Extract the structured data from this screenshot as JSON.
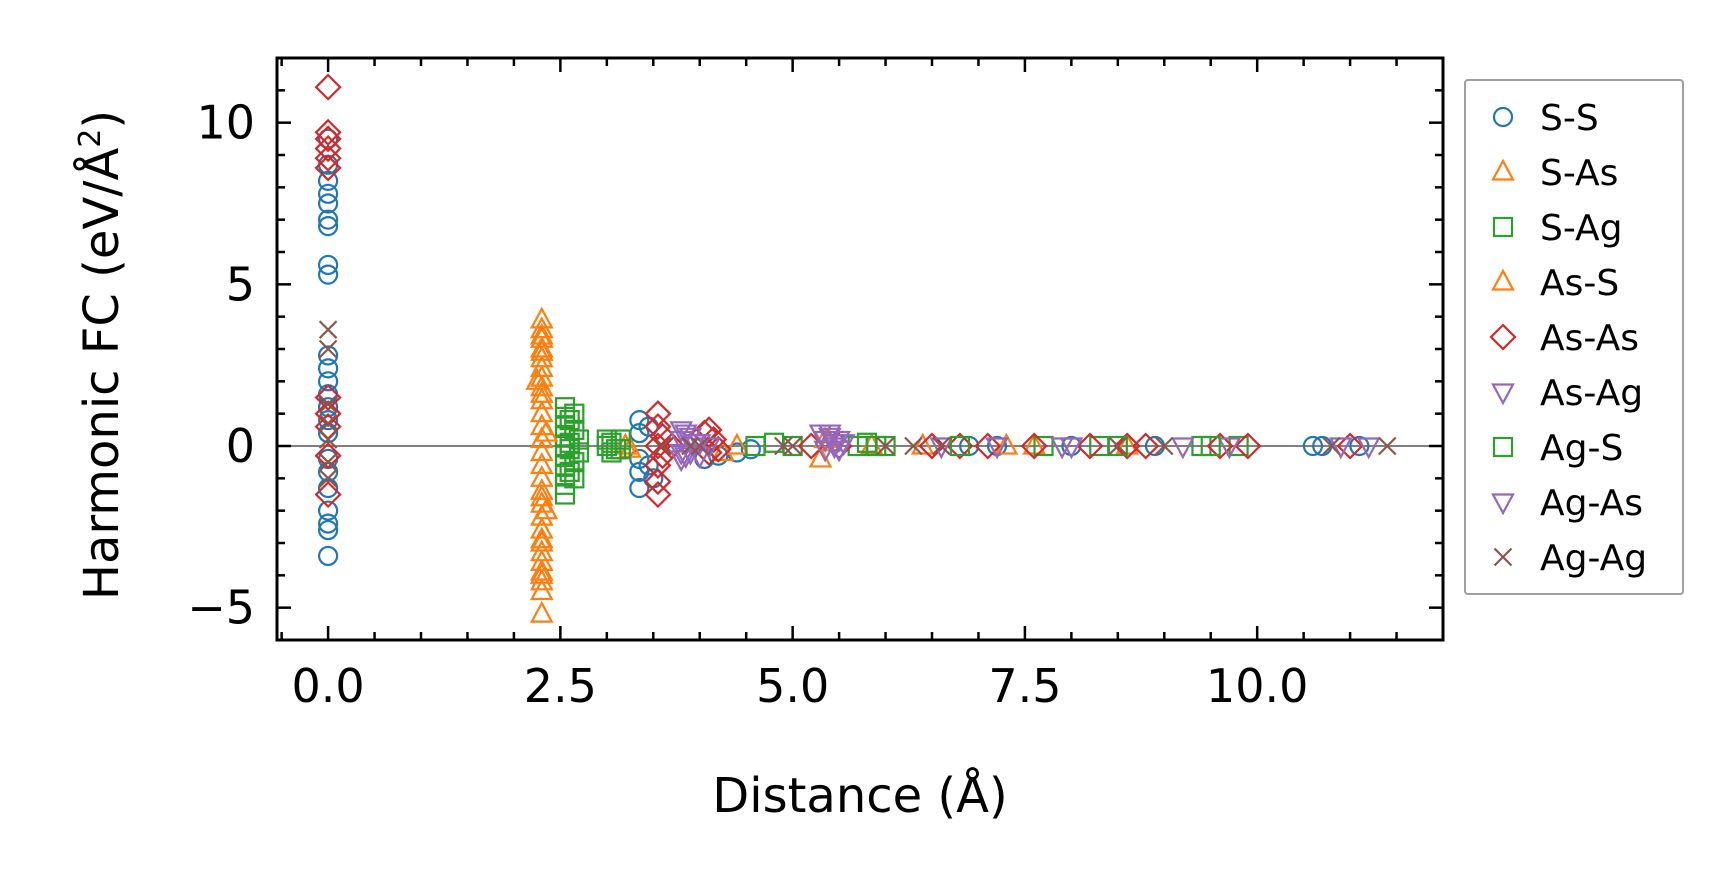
{
  "chart_data": {
    "type": "scatter",
    "title": "",
    "xlabel": "Distance (Å)",
    "ylabel_main": "Harmonic FC (eV/Å",
    "ylabel_sup": "2",
    "ylabel_tail": ")",
    "xlim": [
      -0.55,
      12.0
    ],
    "ylim": [
      -6.0,
      12.0
    ],
    "xticks": [
      0.0,
      2.5,
      5.0,
      7.5,
      10.0
    ],
    "xtick_labels": [
      "0.0",
      "2.5",
      "5.0",
      "7.5",
      "10.0"
    ],
    "yticks": [
      -5,
      0,
      5,
      10
    ],
    "ytick_labels": [
      "−5",
      "0",
      "5",
      "10"
    ],
    "zero_line": 0,
    "legend_position": "outside-right",
    "series": [
      {
        "name": "S-S",
        "marker": "circle",
        "color": "#1f77b4",
        "points": [
          [
            0,
            9.5
          ],
          [
            0,
            8.7
          ],
          [
            0,
            8.2
          ],
          [
            0,
            7.8
          ],
          [
            0,
            7.5
          ],
          [
            0,
            7.0
          ],
          [
            0,
            6.8
          ],
          [
            0,
            5.6
          ],
          [
            0,
            5.3
          ],
          [
            0,
            2.8
          ],
          [
            0,
            2.4
          ],
          [
            0,
            2.0
          ],
          [
            0,
            1.6
          ],
          [
            0,
            1.2
          ],
          [
            0,
            0.8
          ],
          [
            0,
            0.4
          ],
          [
            0,
            -0.4
          ],
          [
            0,
            -0.8
          ],
          [
            0,
            -1.3
          ],
          [
            0,
            -2.0
          ],
          [
            0,
            -2.4
          ],
          [
            0,
            -2.6
          ],
          [
            0,
            -3.4
          ],
          [
            3.35,
            0.8
          ],
          [
            3.35,
            0.4
          ],
          [
            3.35,
            -0.4
          ],
          [
            3.35,
            -0.8
          ],
          [
            3.35,
            -1.3
          ],
          [
            3.45,
            0.6
          ],
          [
            3.45,
            -0.6
          ],
          [
            3.5,
            -1.0
          ],
          [
            4.05,
            -0.4
          ],
          [
            4.2,
            -0.3
          ],
          [
            4.4,
            -0.2
          ],
          [
            4.55,
            -0.1
          ],
          [
            6.9,
            0
          ],
          [
            7.2,
            0
          ],
          [
            8.0,
            0
          ],
          [
            8.9,
            0
          ],
          [
            10.6,
            0
          ],
          [
            10.7,
            0
          ],
          [
            11.1,
            0
          ]
        ]
      },
      {
        "name": "S-As",
        "marker": "triangle-up",
        "color": "#ff7f0e",
        "points": [
          [
            2.3,
            3.9
          ],
          [
            2.3,
            3.6
          ],
          [
            2.3,
            3.3
          ],
          [
            2.3,
            3.0
          ],
          [
            2.3,
            2.7
          ],
          [
            2.3,
            2.4
          ],
          [
            2.3,
            2.1
          ],
          [
            2.3,
            1.8
          ],
          [
            2.3,
            1.4
          ],
          [
            2.3,
            1.0
          ],
          [
            2.3,
            0.6
          ],
          [
            2.3,
            0.2
          ],
          [
            2.3,
            -0.2
          ],
          [
            2.3,
            -0.6
          ],
          [
            2.3,
            -1.0
          ],
          [
            2.3,
            -1.4
          ],
          [
            2.3,
            -1.8
          ],
          [
            2.3,
            -2.2
          ],
          [
            2.3,
            -2.6
          ],
          [
            2.3,
            -3.0
          ],
          [
            2.3,
            -3.3
          ],
          [
            2.3,
            -3.6
          ],
          [
            2.3,
            -3.9
          ],
          [
            2.3,
            -4.2
          ],
          [
            2.3,
            -4.5
          ],
          [
            2.3,
            -5.2
          ],
          [
            2.25,
            2.0
          ],
          [
            2.35,
            -2.0
          ],
          [
            3.2,
            0
          ],
          [
            3.25,
            -0.1
          ],
          [
            4.25,
            -0.2
          ],
          [
            4.4,
            0
          ],
          [
            5.3,
            -0.4
          ],
          [
            5.35,
            0.2
          ],
          [
            5.85,
            0
          ],
          [
            7.3,
            0
          ],
          [
            7.6,
            0
          ]
        ]
      },
      {
        "name": "S-Ag",
        "marker": "square",
        "color": "#2ca02c",
        "points": [
          [
            2.55,
            1.2
          ],
          [
            2.55,
            0.9
          ],
          [
            2.55,
            0.6
          ],
          [
            2.55,
            0.3
          ],
          [
            2.55,
            0
          ],
          [
            2.55,
            -0.3
          ],
          [
            2.55,
            -0.6
          ],
          [
            2.55,
            -0.9
          ],
          [
            2.55,
            -1.2
          ],
          [
            2.55,
            -1.5
          ],
          [
            2.65,
            1.0
          ],
          [
            2.65,
            0.5
          ],
          [
            2.65,
            -0.5
          ],
          [
            2.65,
            -1.0
          ],
          [
            2.7,
            0.2
          ],
          [
            2.7,
            -0.2
          ],
          [
            3.0,
            0.2
          ],
          [
            3.0,
            0
          ],
          [
            3.05,
            -0.2
          ],
          [
            3.15,
            0.2
          ],
          [
            3.15,
            -0.1
          ],
          [
            4.6,
            0
          ],
          [
            4.8,
            0.1
          ],
          [
            5.0,
            0
          ],
          [
            5.7,
            0
          ],
          [
            5.8,
            0.1
          ],
          [
            6.0,
            0
          ],
          [
            7.7,
            0
          ],
          [
            8.3,
            0
          ],
          [
            9.4,
            0
          ],
          [
            9.8,
            0
          ]
        ]
      },
      {
        "name": "As-S",
        "marker": "triangle-up",
        "color": "#ff7f0e",
        "points": [
          [
            2.3,
            3.4
          ],
          [
            2.3,
            2.9
          ],
          [
            2.3,
            1.6
          ],
          [
            2.3,
            -1.6
          ],
          [
            2.3,
            -2.9
          ],
          [
            2.3,
            -4.0
          ],
          [
            2.35,
            0.4
          ],
          [
            5.4,
            0.1
          ],
          [
            6.4,
            0
          ],
          [
            8.6,
            0
          ]
        ]
      },
      {
        "name": "As-As",
        "marker": "diamond",
        "color": "#d62728",
        "points": [
          [
            0,
            11.1
          ],
          [
            0,
            9.7
          ],
          [
            0,
            9.5
          ],
          [
            0,
            9.2
          ],
          [
            0,
            8.9
          ],
          [
            0,
            8.6
          ],
          [
            0,
            1.5
          ],
          [
            0,
            1.0
          ],
          [
            0,
            0.6
          ],
          [
            0,
            -0.3
          ],
          [
            0,
            -1.5
          ],
          [
            3.55,
            1.0
          ],
          [
            3.55,
            0.6
          ],
          [
            3.55,
            0
          ],
          [
            3.55,
            -0.6
          ],
          [
            3.55,
            -1.1
          ],
          [
            3.55,
            -1.5
          ],
          [
            3.6,
            0.3
          ],
          [
            3.6,
            -0.3
          ],
          [
            3.7,
            0
          ],
          [
            4.05,
            0.4
          ],
          [
            4.1,
            0.5
          ],
          [
            4.1,
            -0.2
          ],
          [
            4.15,
            0.2
          ],
          [
            4.2,
            -0.1
          ],
          [
            5.2,
            0
          ],
          [
            5.5,
            0
          ],
          [
            6.5,
            0
          ],
          [
            6.8,
            0
          ],
          [
            7.1,
            0
          ],
          [
            7.6,
            0
          ],
          [
            8.2,
            0
          ],
          [
            8.6,
            0
          ],
          [
            8.8,
            0
          ],
          [
            9.6,
            0
          ],
          [
            9.9,
            0
          ],
          [
            11.0,
            0
          ]
        ]
      },
      {
        "name": "As-Ag",
        "marker": "triangle-down",
        "color": "#9467bd",
        "points": [
          [
            3.8,
            0.5
          ],
          [
            3.8,
            0.2
          ],
          [
            3.8,
            -0.2
          ],
          [
            3.8,
            -0.4
          ],
          [
            3.9,
            0.3
          ],
          [
            3.9,
            -0.2
          ],
          [
            4.0,
            0.1
          ],
          [
            4.0,
            -0.3
          ],
          [
            4.1,
            0
          ],
          [
            5.3,
            0.4
          ],
          [
            5.35,
            0.2
          ],
          [
            5.35,
            -0.1
          ],
          [
            5.4,
            0.3
          ],
          [
            5.45,
            0.1
          ],
          [
            5.5,
            0.2
          ],
          [
            5.5,
            -0.1
          ],
          [
            6.6,
            0
          ],
          [
            7.9,
            0
          ],
          [
            9.7,
            0
          ],
          [
            11.2,
            0
          ]
        ]
      },
      {
        "name": "Ag-S",
        "marker": "square",
        "color": "#2ca02c",
        "points": [
          [
            2.6,
            0.8
          ],
          [
            2.6,
            -0.8
          ],
          [
            2.6,
            0.1
          ],
          [
            2.6,
            -0.1
          ],
          [
            3.05,
            0.1
          ],
          [
            3.1,
            -0.1
          ],
          [
            5.9,
            0
          ],
          [
            6.8,
            0
          ],
          [
            8.5,
            0
          ],
          [
            9.5,
            0
          ]
        ]
      },
      {
        "name": "Ag-As",
        "marker": "triangle-down",
        "color": "#9467bd",
        "points": [
          [
            3.85,
            0.4
          ],
          [
            3.85,
            -0.3
          ],
          [
            3.95,
            0.1
          ],
          [
            5.4,
            0.4
          ],
          [
            5.45,
            0
          ],
          [
            5.55,
            0.1
          ],
          [
            7.2,
            0
          ],
          [
            8.0,
            0
          ],
          [
            9.2,
            0
          ],
          [
            10.9,
            0
          ]
        ]
      },
      {
        "name": "Ag-Ag",
        "marker": "x",
        "color": "#8c564b",
        "points": [
          [
            0,
            3.6
          ],
          [
            0,
            3.0
          ],
          [
            0,
            1.3
          ],
          [
            0,
            0.7
          ],
          [
            0,
            0.2
          ],
          [
            0,
            -0.5
          ],
          [
            0,
            -1.0
          ],
          [
            3.6,
            0
          ],
          [
            3.9,
            0
          ],
          [
            4.0,
            0
          ],
          [
            4.9,
            0
          ],
          [
            5.0,
            0
          ],
          [
            6.0,
            0
          ],
          [
            6.3,
            0
          ],
          [
            6.6,
            0
          ],
          [
            8.5,
            0
          ],
          [
            9.0,
            0
          ],
          [
            10.8,
            0
          ],
          [
            11.4,
            0
          ]
        ]
      }
    ]
  }
}
